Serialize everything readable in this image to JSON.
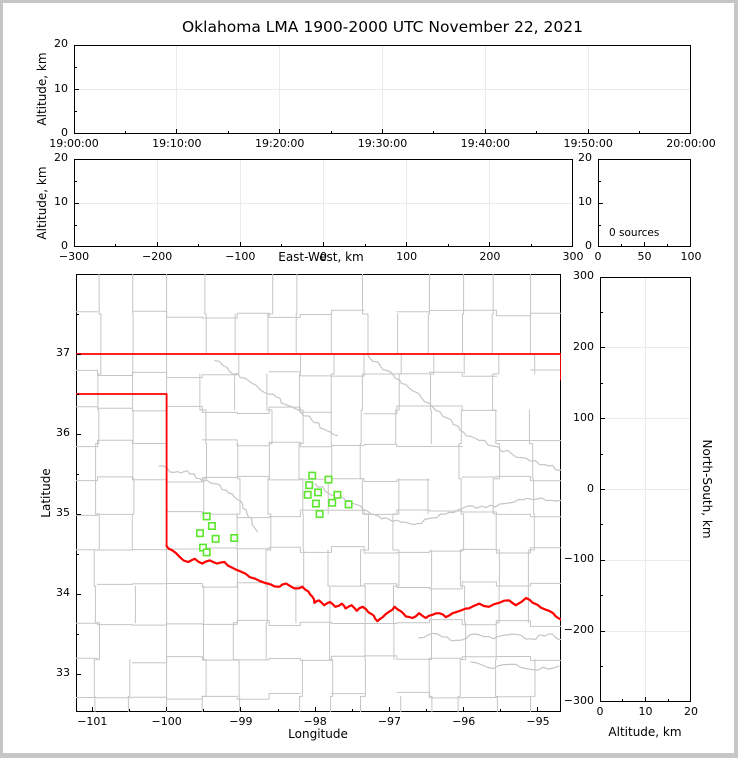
{
  "title": "Oklahoma LMA 1900-2000 UTC November 22, 2021",
  "colors": {
    "station_green": "#5ce62e",
    "boundary_red": "#ff0000",
    "county_gray": "#c5c5c5",
    "gridline": "#ebebeb",
    "axis": "#000000",
    "frame_gray": "#c6c6c6"
  },
  "chart_data": {
    "type": "scatter",
    "description": "Five-panel LMA source display; no VHF sources plotted in this hour (0 sources). Map shows Oklahoma county lines, red state border / Red River, and green LMA station squares.",
    "panels": {
      "time_height": {
        "ylabel": "Altitude, km",
        "xlim_minutes": [
          0,
          60
        ],
        "ylim": [
          0,
          20
        ],
        "xticks": {
          "v": [
            0,
            10,
            20,
            30,
            40,
            50,
            60
          ],
          "labels": [
            "19:00:00",
            "19:10:00",
            "19:20:00",
            "19:30:00",
            "19:40:00",
            "19:50:00",
            "20:00:00"
          ]
        },
        "xminor": [
          5,
          15,
          25,
          35,
          45,
          55
        ],
        "yticks": {
          "v": [
            0,
            10,
            20
          ],
          "labels": [
            "0",
            "10",
            "20"
          ]
        },
        "yminor": [
          5,
          15
        ],
        "grid": true,
        "points": []
      },
      "ew_height": {
        "xlabel": "East-West, km",
        "ylabel": "Altitude, km",
        "xlim": [
          -300,
          300
        ],
        "ylim": [
          0,
          20
        ],
        "xticks": {
          "v": [
            -300,
            -200,
            -100,
            0,
            100,
            200,
            300
          ],
          "labels": [
            "−300",
            "−200",
            "−100",
            "0",
            "100",
            "200",
            "300"
          ]
        },
        "xminor": [
          -250,
          -150,
          -50,
          50,
          150,
          250
        ],
        "yticks": {
          "v": [
            0,
            10,
            20
          ],
          "labels": [
            "0",
            "10",
            "20"
          ]
        },
        "yminor": [
          5,
          15
        ],
        "grid": true,
        "points": []
      },
      "alt_histogram": {
        "annotation": "0 sources",
        "xlim": [
          0,
          100
        ],
        "ylim": [
          0,
          20
        ],
        "xticks": {
          "v": [
            0,
            50,
            100
          ],
          "labels": [
            "0",
            "50",
            "100"
          ]
        },
        "xminor": [
          25,
          75
        ],
        "yticks": {
          "v": [
            0,
            10,
            20
          ],
          "labels": [
            "0",
            "10",
            "20"
          ]
        },
        "yminor": [
          5,
          15
        ],
        "grid": false,
        "points": []
      },
      "plan_map": {
        "xlabel": "Longitude",
        "ylabel": "Latitude",
        "xlim": [
          -101.22,
          -94.69
        ],
        "ylim": [
          32.525,
          38.0
        ],
        "xticks": {
          "v": [
            -101,
            -100,
            -99,
            -98,
            -97,
            -96,
            -95
          ],
          "labels": [
            "−101",
            "−100",
            "−99",
            "−98",
            "−97",
            "−96",
            "−95"
          ]
        },
        "xminor": [
          -100.5,
          -99.5,
          -98.5,
          -97.5,
          -96.5,
          -95.5
        ],
        "yticks": {
          "v": [
            33,
            34,
            35,
            36,
            37
          ],
          "labels": [
            "33",
            "34",
            "35",
            "36",
            "37"
          ]
        },
        "yminor": [
          33.5,
          34.5,
          35.5,
          36.5,
          37.5
        ],
        "grid": false
      },
      "ns_height": {
        "xlabel": "Altitude, km",
        "ylabel": "North-South, km",
        "xlim": [
          0,
          20
        ],
        "ylim": [
          -300,
          300
        ],
        "xticks": {
          "v": [
            0,
            10,
            20
          ],
          "labels": [
            "0",
            "10",
            "20"
          ]
        },
        "xminor": [
          5,
          15
        ],
        "yticks": {
          "v": [
            300,
            200,
            100,
            0,
            -100,
            -200,
            -300
          ],
          "labels": [
            "300",
            "200",
            "100",
            "0",
            "−100",
            "−200",
            "−300"
          ]
        },
        "yminor": [
          -250,
          -150,
          -50,
          50,
          150,
          250
        ],
        "grid": true,
        "points": []
      }
    },
    "map_overlay": {
      "stations_lonlat": [
        [
          -98.04,
          35.48
        ],
        [
          -97.82,
          35.43
        ],
        [
          -98.08,
          35.36
        ],
        [
          -97.96,
          35.27
        ],
        [
          -98.1,
          35.24
        ],
        [
          -97.7,
          35.24
        ],
        [
          -97.99,
          35.13
        ],
        [
          -97.77,
          35.14
        ],
        [
          -97.55,
          35.12
        ],
        [
          -97.94,
          35.0
        ],
        [
          -99.46,
          34.97
        ],
        [
          -99.39,
          34.85
        ],
        [
          -99.55,
          34.76
        ],
        [
          -99.34,
          34.69
        ],
        [
          -99.09,
          34.7
        ],
        [
          -99.51,
          34.58
        ],
        [
          -99.46,
          34.52
        ]
      ],
      "state_border_red": {
        "north_37": [
          [
            -101.22,
            37.0
          ],
          [
            -94.69,
            37.0
          ]
        ],
        "missouri_edge": [
          [
            -94.69,
            37.0
          ],
          [
            -94.69,
            36.68
          ]
        ],
        "panhandle_south": [
          [
            -101.22,
            36.5
          ],
          [
            -100.0,
            36.5
          ]
        ],
        "west_100": [
          [
            -100.0,
            36.5
          ],
          [
            -100.0,
            34.6
          ]
        ],
        "red_river": [
          [
            -100.0,
            34.6
          ],
          [
            -99.93,
            34.55
          ],
          [
            -99.82,
            34.46
          ],
          [
            -99.71,
            34.4
          ],
          [
            -99.62,
            34.44
          ],
          [
            -99.52,
            34.38
          ],
          [
            -99.42,
            34.42
          ],
          [
            -99.32,
            34.38
          ],
          [
            -99.22,
            34.4
          ],
          [
            -99.12,
            34.33
          ],
          [
            -99.0,
            34.28
          ],
          [
            -98.88,
            34.21
          ],
          [
            -98.74,
            34.16
          ],
          [
            -98.6,
            34.12
          ],
          [
            -98.48,
            34.09
          ],
          [
            -98.39,
            34.13
          ],
          [
            -98.28,
            34.07
          ],
          [
            -98.17,
            34.09
          ],
          [
            -98.09,
            34.03
          ],
          [
            -98.04,
            33.97
          ],
          [
            -98.01,
            33.89
          ],
          [
            -97.95,
            33.92
          ],
          [
            -97.88,
            33.86
          ],
          [
            -97.8,
            33.9
          ],
          [
            -97.73,
            33.84
          ],
          [
            -97.64,
            33.88
          ],
          [
            -97.59,
            33.82
          ],
          [
            -97.51,
            33.86
          ],
          [
            -97.44,
            33.79
          ],
          [
            -97.36,
            33.84
          ],
          [
            -97.28,
            33.77
          ],
          [
            -97.21,
            33.73
          ],
          [
            -97.16,
            33.66
          ],
          [
            -97.09,
            33.71
          ],
          [
            -97.0,
            33.78
          ],
          [
            -96.93,
            33.84
          ],
          [
            -96.84,
            33.78
          ],
          [
            -96.78,
            33.72
          ],
          [
            -96.69,
            33.7
          ],
          [
            -96.6,
            33.76
          ],
          [
            -96.51,
            33.7
          ],
          [
            -96.42,
            33.74
          ],
          [
            -96.33,
            33.76
          ],
          [
            -96.24,
            33.71
          ],
          [
            -96.15,
            33.76
          ],
          [
            -96.02,
            33.8
          ],
          [
            -95.93,
            33.82
          ],
          [
            -95.79,
            33.88
          ],
          [
            -95.66,
            33.84
          ],
          [
            -95.52,
            33.89
          ],
          [
            -95.39,
            33.92
          ],
          [
            -95.3,
            33.86
          ],
          [
            -95.16,
            33.95
          ],
          [
            -95.07,
            33.89
          ],
          [
            -94.96,
            33.83
          ],
          [
            -94.85,
            33.79
          ],
          [
            -94.76,
            33.72
          ],
          [
            -94.69,
            33.68
          ]
        ]
      },
      "rivers_gray": [
        [
          [
            -99.35,
            36.92
          ],
          [
            -99.15,
            36.78
          ],
          [
            -98.95,
            36.7
          ],
          [
            -98.75,
            36.56
          ],
          [
            -98.57,
            36.5
          ],
          [
            -98.4,
            36.37
          ],
          [
            -98.22,
            36.3
          ],
          [
            -98.05,
            36.18
          ],
          [
            -97.88,
            36.06
          ],
          [
            -97.7,
            35.98
          ]
        ],
        [
          [
            -97.3,
            37.0
          ],
          [
            -97.12,
            36.85
          ],
          [
            -96.95,
            36.74
          ],
          [
            -96.78,
            36.62
          ],
          [
            -96.6,
            36.5
          ],
          [
            -96.42,
            36.34
          ],
          [
            -96.22,
            36.2
          ],
          [
            -96.05,
            36.05
          ],
          [
            -95.85,
            35.95
          ],
          [
            -95.6,
            35.85
          ],
          [
            -95.35,
            35.75
          ],
          [
            -95.1,
            35.66
          ],
          [
            -94.85,
            35.6
          ],
          [
            -94.69,
            35.55
          ]
        ],
        [
          [
            -98.0,
            35.38
          ],
          [
            -97.82,
            35.26
          ],
          [
            -97.62,
            35.2
          ],
          [
            -97.45,
            35.12
          ],
          [
            -97.25,
            35.0
          ],
          [
            -97.05,
            34.95
          ],
          [
            -96.85,
            34.9
          ],
          [
            -96.62,
            34.88
          ],
          [
            -96.42,
            34.95
          ],
          [
            -96.2,
            35.02
          ],
          [
            -95.95,
            35.1
          ],
          [
            -95.7,
            35.08
          ],
          [
            -95.45,
            35.13
          ],
          [
            -95.2,
            35.18
          ],
          [
            -94.95,
            35.2
          ],
          [
            -94.69,
            35.17
          ]
        ],
        [
          [
            -96.6,
            33.45
          ],
          [
            -96.35,
            33.5
          ],
          [
            -96.1,
            33.42
          ],
          [
            -95.85,
            33.5
          ],
          [
            -95.6,
            33.44
          ],
          [
            -95.35,
            33.5
          ],
          [
            -95.1,
            33.44
          ],
          [
            -94.85,
            33.5
          ],
          [
            -94.69,
            33.43
          ]
        ],
        [
          [
            -95.9,
            33.15
          ],
          [
            -95.6,
            33.07
          ],
          [
            -95.3,
            33.12
          ],
          [
            -95.0,
            33.05
          ],
          [
            -94.72,
            33.1
          ]
        ],
        [
          [
            -100.1,
            35.6
          ],
          [
            -99.9,
            35.52
          ],
          [
            -99.72,
            35.54
          ],
          [
            -99.55,
            35.44
          ],
          [
            -99.38,
            35.38
          ],
          [
            -99.2,
            35.3
          ],
          [
            -99.05,
            35.18
          ],
          [
            -98.93,
            35.05
          ],
          [
            -98.85,
            34.9
          ],
          [
            -98.78,
            34.78
          ]
        ]
      ],
      "county_grid": {
        "seed": 9,
        "col_lons": [
          -100.93,
          -100.46,
          -100.0,
          -99.52,
          -99.05,
          -98.62,
          -98.2,
          -97.78,
          -97.34,
          -96.9,
          -96.46,
          -96.02,
          -95.56,
          -95.1
        ],
        "row_lats": [
          32.72,
          33.18,
          33.64,
          34.1,
          34.55,
          35.0,
          35.44,
          35.88,
          36.3,
          36.75,
          37.5
        ],
        "v_band_lats": [
          32.525,
          32.72,
          33.18,
          33.64,
          34.1,
          34.55,
          35.0,
          35.44,
          35.88,
          36.3,
          36.75,
          37.0,
          37.5,
          38.0
        ],
        "fixed_lons": [
          -100.0
        ],
        "jitter_lon": 0.12,
        "jitter_lat": 0.1,
        "skip_v": 0.15,
        "skip_h": 0.12
      }
    }
  }
}
